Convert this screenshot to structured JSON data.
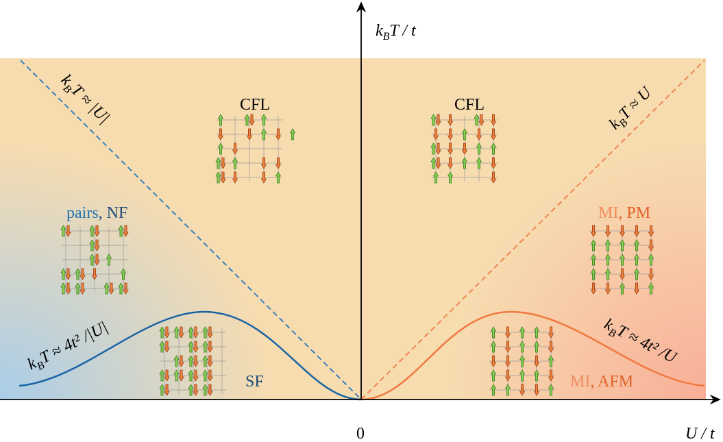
{
  "axes": {
    "y_label": {
      "main": "k",
      "sub": "B",
      "rest": "T / t"
    },
    "x_label": "U / t",
    "origin": "0"
  },
  "regions": {
    "cfl_left": "CFL",
    "cfl_right": "CFL",
    "pairs_nf": {
      "first": "pairs",
      "second": ", NF"
    },
    "mi_pm": {
      "first": "MI",
      "second": ", PM"
    },
    "sf": "SF",
    "mi_afm": {
      "first": "MI",
      "second": ", AFM"
    }
  },
  "curves": {
    "left_dashed": {
      "main": "k",
      "sub": "B",
      "rest": "T ≈ |U|"
    },
    "right_dashed": {
      "main": "k",
      "sub": "B",
      "rest": "T ≈ U"
    },
    "left_solid": {
      "main": "k",
      "sub": "B",
      "rest": "T ≈ 4t² /|U|"
    },
    "right_solid": {
      "main": "k",
      "sub": "B",
      "rest": "T ≈ 4t² /U"
    }
  }
}
